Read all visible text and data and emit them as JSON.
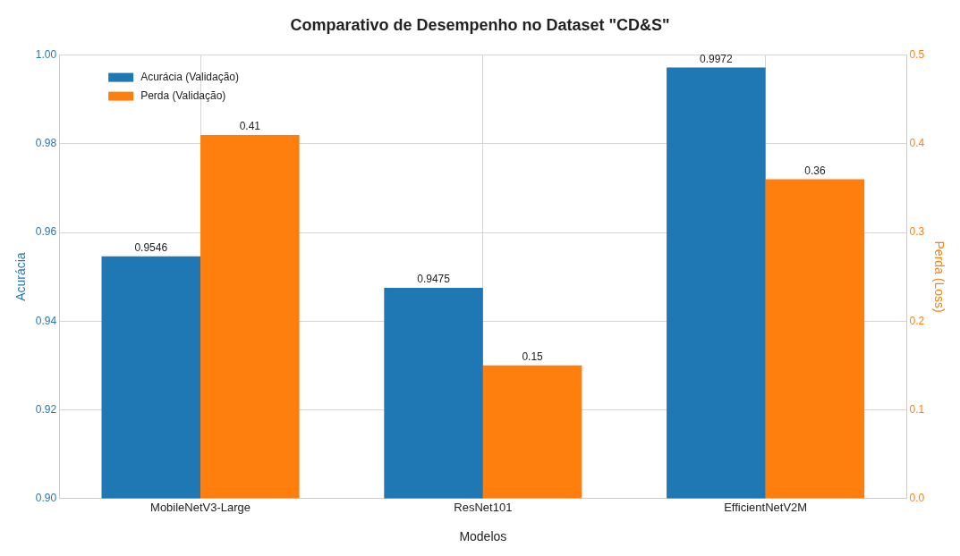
{
  "chart_data": {
    "type": "bar",
    "title": "Comparativo de Desempenho no Dataset \"CD&S\"",
    "xlabel": "Modelos",
    "ylabel": "Acurácia",
    "y2label": "Perda (Loss)",
    "categories": [
      "MobileNetV3-Large",
      "ResNet101",
      "EfficientNetV2M"
    ],
    "series": [
      {
        "name": "Acurácia (Validação)",
        "color": "#1f77b4",
        "values": [
          0.9546,
          0.9475,
          0.9972
        ]
      },
      {
        "name": "Perda (Validação)",
        "color": "#ff7f0e",
        "values": [
          0.41,
          0.15,
          0.36
        ],
        "axis": "y2"
      }
    ],
    "ylim": [
      0.9,
      1.0
    ],
    "yticks": [
      {
        "value": 0.9,
        "label": "0.90"
      },
      0.92,
      0.94,
      0.96,
      0.98,
      {
        "value": 1.0,
        "label": "1.00"
      }
    ],
    "y2lim": [
      0,
      0.5
    ],
    "y2ticks": [
      {
        "value": 0,
        "label": "0.0"
      },
      0.1,
      0.2,
      0.3,
      0.4,
      0.5
    ],
    "grid": true,
    "legend": "top left",
    "data_labels": true
  }
}
